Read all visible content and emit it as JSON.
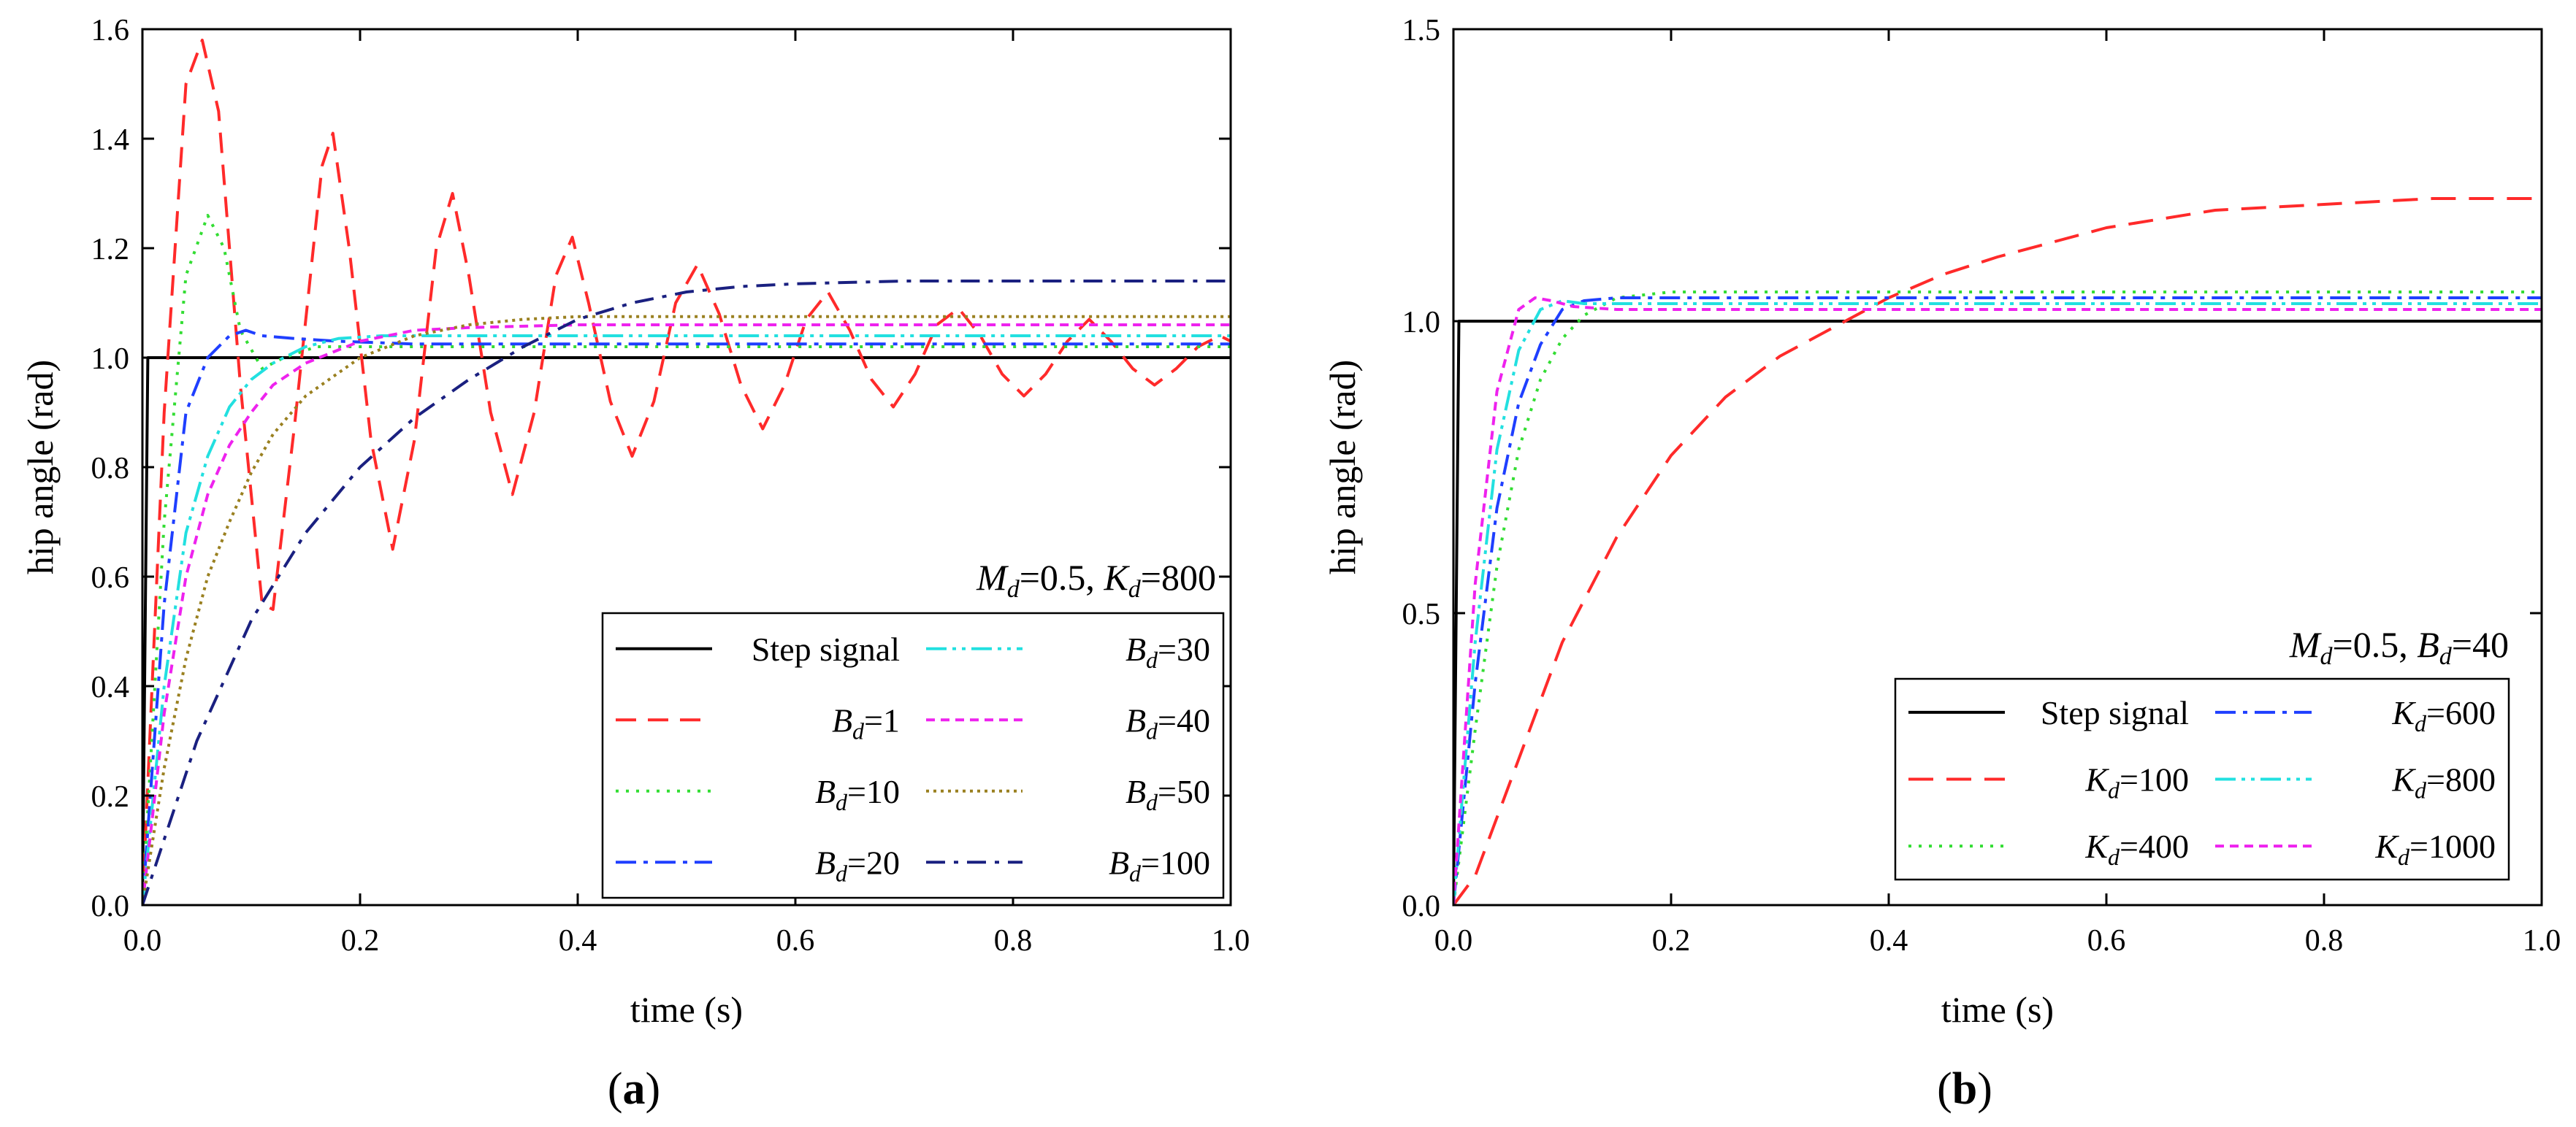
{
  "panels": [
    {
      "id": "a",
      "caption_letter": "a",
      "annotation": {
        "m_sym": "M",
        "m_sub": "d",
        "m_val": "=0.5, ",
        "p_sym": "K",
        "p_sub": "d",
        "p_val": "=800"
      },
      "legend_position": "bottom-right",
      "legend_columns": 2,
      "chart_data": {
        "type": "line",
        "xlabel": "time (s)",
        "ylabel": "hip angle (rad)",
        "xlim": [
          0,
          1.0
        ],
        "ylim": [
          0,
          1.6
        ],
        "xticks": [
          0,
          0.2,
          0.4,
          0.6,
          0.8,
          1.0
        ],
        "yticks": [
          0,
          0.2,
          0.4,
          0.6,
          0.8,
          1.0,
          1.2,
          1.4,
          1.6
        ],
        "xtick_labels": [
          "0.0",
          "0.2",
          "0.4",
          "0.6",
          "0.8",
          "1.0"
        ],
        "ytick_labels": [
          "0.0",
          "0.2",
          "0.4",
          "0.6",
          "0.8",
          "1.0",
          "1.2",
          "1.4",
          "1.6"
        ],
        "series": [
          {
            "name": "Step signal",
            "label": "Step signal",
            "color": "#000000",
            "dash": "",
            "x": [
              0,
              0.005,
              1.0
            ],
            "y": [
              0,
              1.0,
              1.0
            ]
          },
          {
            "name": "B_d=1",
            "sym": "B",
            "sub": "d",
            "val": "=1",
            "color": "#ff2a2a",
            "dash": "28 16",
            "x": [
              0,
              0.02,
              0.04,
              0.055,
              0.07,
              0.09,
              0.11,
              0.12,
              0.14,
              0.165,
              0.175,
              0.19,
              0.21,
              0.23,
              0.25,
              0.27,
              0.285,
              0.3,
              0.32,
              0.34,
              0.36,
              0.38,
              0.395,
              0.41,
              0.43,
              0.45,
              0.47,
              0.49,
              0.51,
              0.53,
              0.55,
              0.57,
              0.59,
              0.61,
              0.63,
              0.65,
              0.67,
              0.69,
              0.71,
              0.73,
              0.75,
              0.77,
              0.79,
              0.81,
              0.83,
              0.85,
              0.87,
              0.89,
              0.91,
              0.93,
              0.95,
              0.97,
              0.99,
              1.0
            ],
            "y": [
              0,
              0.9,
              1.5,
              1.58,
              1.45,
              0.95,
              0.55,
              0.54,
              0.88,
              1.35,
              1.41,
              1.2,
              0.85,
              0.65,
              0.85,
              1.2,
              1.3,
              1.15,
              0.9,
              0.75,
              0.9,
              1.15,
              1.22,
              1.1,
              0.92,
              0.82,
              0.92,
              1.1,
              1.17,
              1.08,
              0.95,
              0.87,
              0.95,
              1.07,
              1.12,
              1.05,
              0.96,
              0.91,
              0.97,
              1.06,
              1.09,
              1.04,
              0.97,
              0.93,
              0.97,
              1.03,
              1.07,
              1.03,
              0.98,
              0.95,
              0.98,
              1.02,
              1.04,
              1.03
            ]
          },
          {
            "name": "B_d=10",
            "sym": "B",
            "sub": "d",
            "val": "=10",
            "color": "#33dd33",
            "dash": "4 10",
            "x": [
              0,
              0.02,
              0.04,
              0.06,
              0.075,
              0.09,
              0.11,
              0.13,
              0.16,
              0.2,
              0.3,
              0.5,
              1.0
            ],
            "y": [
              0,
              0.7,
              1.15,
              1.26,
              1.2,
              1.05,
              0.98,
              1.0,
              1.02,
              1.02,
              1.02,
              1.02,
              1.02
            ]
          },
          {
            "name": "B_d=20",
            "sym": "B",
            "sub": "d",
            "val": "=20",
            "color": "#1f3fff",
            "dash": "28 10 6 10",
            "x": [
              0,
              0.02,
              0.04,
              0.06,
              0.08,
              0.095,
              0.11,
              0.14,
              0.18,
              0.25,
              0.4,
              1.0
            ],
            "y": [
              0,
              0.55,
              0.9,
              1.0,
              1.04,
              1.05,
              1.04,
              1.035,
              1.03,
              1.025,
              1.025,
              1.025
            ]
          },
          {
            "name": "B_d=30",
            "sym": "B",
            "sub": "d",
            "val": "=30",
            "color": "#22e0e0",
            "dash": "28 8 5 8 5 8",
            "x": [
              0,
              0.02,
              0.04,
              0.06,
              0.08,
              0.1,
              0.12,
              0.15,
              0.18,
              0.22,
              0.3,
              0.5,
              1.0
            ],
            "y": [
              0,
              0.4,
              0.68,
              0.82,
              0.91,
              0.96,
              0.99,
              1.02,
              1.035,
              1.04,
              1.04,
              1.04,
              1.04
            ]
          },
          {
            "name": "B_d=40",
            "sym": "B",
            "sub": "d",
            "val": "=40",
            "color": "#ee22ee",
            "dash": "12 8",
            "x": [
              0,
              0.02,
              0.04,
              0.06,
              0.08,
              0.1,
              0.12,
              0.15,
              0.2,
              0.25,
              0.3,
              0.4,
              0.6,
              1.0
            ],
            "y": [
              0,
              0.35,
              0.6,
              0.75,
              0.84,
              0.9,
              0.95,
              0.99,
              1.03,
              1.05,
              1.055,
              1.06,
              1.06,
              1.06
            ]
          },
          {
            "name": "B_d=50",
            "sym": "B",
            "sub": "d",
            "val": "=50",
            "color": "#9a8020",
            "dash": "4 6",
            "x": [
              0,
              0.02,
              0.04,
              0.06,
              0.08,
              0.1,
              0.12,
              0.15,
              0.2,
              0.25,
              0.3,
              0.35,
              0.4,
              0.5,
              1.0
            ],
            "y": [
              0,
              0.25,
              0.45,
              0.6,
              0.7,
              0.79,
              0.86,
              0.93,
              1.0,
              1.04,
              1.06,
              1.07,
              1.075,
              1.075,
              1.075
            ]
          },
          {
            "name": "B_d=100",
            "sym": "B",
            "sub": "d",
            "val": "=100",
            "color": "#1a2080",
            "dash": "26 12 6 12",
            "x": [
              0,
              0.05,
              0.1,
              0.15,
              0.2,
              0.25,
              0.3,
              0.35,
              0.4,
              0.45,
              0.5,
              0.55,
              0.6,
              0.7,
              0.8,
              1.0
            ],
            "y": [
              0,
              0.3,
              0.52,
              0.68,
              0.8,
              0.89,
              0.96,
              1.02,
              1.07,
              1.1,
              1.12,
              1.13,
              1.135,
              1.14,
              1.14,
              1.14
            ]
          }
        ]
      }
    },
    {
      "id": "b",
      "caption_letter": "b",
      "annotation": {
        "m_sym": "M",
        "m_sub": "d",
        "m_val": "=0.5, ",
        "p_sym": "B",
        "p_sub": "d",
        "p_val": "=40"
      },
      "legend_position": "bottom-right",
      "legend_columns": 2,
      "chart_data": {
        "type": "line",
        "xlabel": "time (s)",
        "ylabel": "hip angle (rad)",
        "xlim": [
          0,
          1.0
        ],
        "ylim": [
          0,
          1.5
        ],
        "xticks": [
          0,
          0.2,
          0.4,
          0.6,
          0.8,
          1.0
        ],
        "yticks": [
          0,
          0.5,
          1.0,
          1.5
        ],
        "xtick_labels": [
          "0.0",
          "0.2",
          "0.4",
          "0.6",
          "0.8",
          "1.0"
        ],
        "ytick_labels": [
          "0.0",
          "0.5",
          "1.0",
          "1.5"
        ],
        "series": [
          {
            "name": "Step signal",
            "label": "Step signal",
            "color": "#000000",
            "dash": "",
            "x": [
              0,
              0.005,
              1.0
            ],
            "y": [
              0,
              1.0,
              1.0
            ]
          },
          {
            "name": "K_d=100",
            "sym": "K",
            "sub": "d",
            "val": "=100",
            "color": "#ff2a2a",
            "dash": "34 18",
            "x": [
              0,
              0.02,
              0.05,
              0.1,
              0.15,
              0.2,
              0.25,
              0.3,
              0.35,
              0.4,
              0.45,
              0.5,
              0.6,
              0.7,
              0.8,
              0.9,
              1.0
            ],
            "y": [
              0,
              0.05,
              0.2,
              0.45,
              0.63,
              0.77,
              0.87,
              0.94,
              0.99,
              1.04,
              1.08,
              1.11,
              1.16,
              1.19,
              1.2,
              1.21,
              1.21
            ]
          },
          {
            "name": "K_d=400",
            "sym": "K",
            "sub": "d",
            "val": "=400",
            "color": "#33dd33",
            "dash": "4 10",
            "x": [
              0,
              0.02,
              0.04,
              0.06,
              0.08,
              0.1,
              0.12,
              0.15,
              0.2,
              0.3,
              1.0
            ],
            "y": [
              0,
              0.3,
              0.58,
              0.78,
              0.9,
              0.97,
              1.01,
              1.04,
              1.05,
              1.05,
              1.05
            ]
          },
          {
            "name": "K_d=600",
            "sym": "K",
            "sub": "d",
            "val": "=600",
            "color": "#1f3fff",
            "dash": "28 10 6 10",
            "x": [
              0,
              0.02,
              0.04,
              0.06,
              0.08,
              0.1,
              0.12,
              0.15,
              0.2,
              1.0
            ],
            "y": [
              0,
              0.38,
              0.68,
              0.86,
              0.96,
              1.02,
              1.035,
              1.04,
              1.04,
              1.04
            ]
          },
          {
            "name": "K_d=800",
            "sym": "K",
            "sub": "d",
            "val": "=800",
            "color": "#22e0e0",
            "dash": "28 8 5 8 5 8",
            "x": [
              0,
              0.02,
              0.04,
              0.06,
              0.08,
              0.1,
              0.12,
              0.15,
              1.0
            ],
            "y": [
              0,
              0.45,
              0.78,
              0.95,
              1.02,
              1.035,
              1.03,
              1.03,
              1.03
            ]
          },
          {
            "name": "K_d=1000",
            "sym": "K",
            "sub": "d",
            "val": "=1000",
            "color": "#ee22ee",
            "dash": "12 8",
            "x": [
              0,
              0.02,
              0.04,
              0.06,
              0.075,
              0.09,
              0.11,
              0.15,
              1.0
            ],
            "y": [
              0,
              0.55,
              0.88,
              1.02,
              1.04,
              1.035,
              1.025,
              1.02,
              1.02
            ]
          }
        ]
      }
    }
  ]
}
